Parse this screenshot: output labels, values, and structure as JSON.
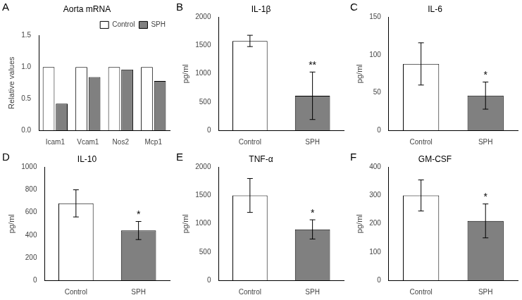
{
  "chart_data": [
    {
      "type": "bar",
      "panel_label": "A",
      "title": "Aorta mRNA",
      "ylabel": "Relative values",
      "categories": [
        "Icam1",
        "Vcam1",
        "Nos2",
        "Mcp1"
      ],
      "series": [
        {
          "name": "Control",
          "color": "#ffffff",
          "values": [
            1.0,
            1.0,
            1.0,
            1.0
          ]
        },
        {
          "name": "SPH",
          "color": "#808080",
          "values": [
            0.42,
            0.84,
            0.96,
            0.78
          ]
        }
      ],
      "ylim": [
        0,
        1.5
      ],
      "yticks": [
        {
          "value": 0,
          "label": "0.0"
        },
        {
          "value": 0.5,
          "label": "0.5"
        },
        {
          "value": 1,
          "label": "1.0"
        },
        {
          "value": 1.5,
          "label": "1.5"
        }
      ],
      "grid": false,
      "legend": "upper right"
    },
    {
      "type": "bar",
      "panel_label": "B",
      "title": "IL-1β",
      "ylabel": "pg/ml",
      "categories": [
        "Control",
        "SPH"
      ],
      "values": [
        1580,
        610
      ],
      "errors": [
        100,
        420
      ],
      "colors": [
        "#ffffff",
        "#808080"
      ],
      "ylim": [
        0,
        2000
      ],
      "yticks": [
        0,
        500,
        1000,
        1500,
        2000
      ],
      "grid": false,
      "annotations": [
        {
          "category": "SPH",
          "text": "**"
        }
      ]
    },
    {
      "type": "bar",
      "panel_label": "C",
      "title": "IL-6",
      "ylabel": "pg/ml",
      "categories": [
        "Control",
        "SPH"
      ],
      "values": [
        88,
        46
      ],
      "errors": [
        28,
        18
      ],
      "colors": [
        "#ffffff",
        "#808080"
      ],
      "ylim": [
        0,
        150
      ],
      "yticks": [
        0,
        50,
        100,
        150
      ],
      "grid": false,
      "annotations": [
        {
          "category": "SPH",
          "text": "*"
        }
      ]
    },
    {
      "type": "bar",
      "panel_label": "D",
      "title": "IL-10",
      "ylabel": "pg/ml",
      "categories": [
        "Control",
        "SPH"
      ],
      "values": [
        680,
        440
      ],
      "errors": [
        120,
        80
      ],
      "colors": [
        "#ffffff",
        "#808080"
      ],
      "ylim": [
        0,
        1000
      ],
      "yticks": [
        0,
        200,
        400,
        600,
        800,
        1000
      ],
      "grid": false,
      "annotations": [
        {
          "category": "SPH",
          "text": "*"
        }
      ]
    },
    {
      "type": "bar",
      "panel_label": "E",
      "title": "TNF-α",
      "ylabel": "pg/ml",
      "categories": [
        "Control",
        "SPH"
      ],
      "values": [
        1500,
        900
      ],
      "errors": [
        300,
        170
      ],
      "colors": [
        "#ffffff",
        "#808080"
      ],
      "ylim": [
        0,
        2000
      ],
      "yticks": [
        0,
        500,
        1000,
        1500,
        2000
      ],
      "grid": false,
      "annotations": [
        {
          "category": "SPH",
          "text": "*"
        }
      ]
    },
    {
      "type": "bar",
      "panel_label": "F",
      "title": "GM-CSF",
      "ylabel": "pg/ml",
      "categories": [
        "Control",
        "SPH"
      ],
      "values": [
        300,
        210
      ],
      "errors": [
        55,
        60
      ],
      "colors": [
        "#ffffff",
        "#808080"
      ],
      "ylim": [
        0,
        400
      ],
      "yticks": [
        0,
        100,
        200,
        300,
        400
      ],
      "grid": false,
      "annotations": [
        {
          "category": "SPH",
          "text": "*"
        }
      ]
    }
  ]
}
